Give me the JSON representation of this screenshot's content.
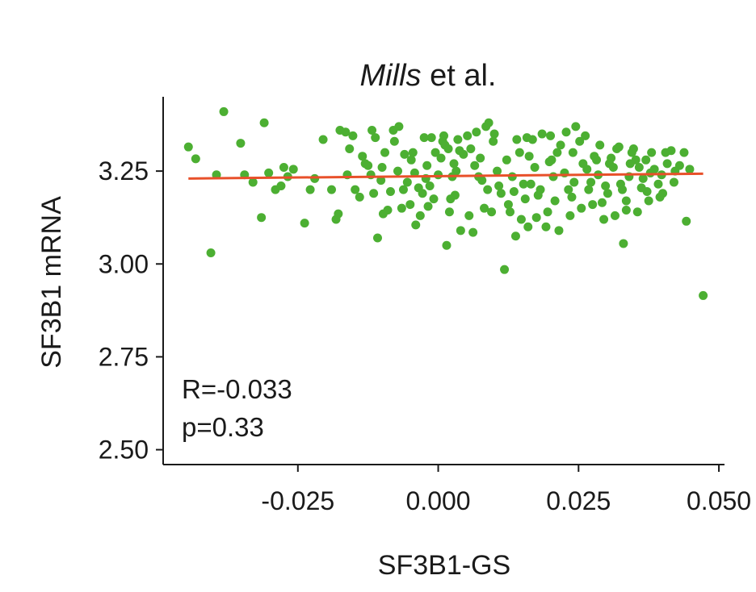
{
  "chart_data": {
    "type": "scatter",
    "title_italic": "Mills",
    "title_rest": " et al.",
    "xlabel": "SF3B1-GS",
    "ylabel": "SF3B1 mRNA",
    "xlim": [
      -0.049,
      0.051
    ],
    "ylim": [
      2.46,
      3.45
    ],
    "xticks": [
      -0.025,
      0.0,
      0.025,
      0.05
    ],
    "xtick_labels": [
      "-0.025",
      "0.000",
      "0.025",
      "0.050"
    ],
    "yticks": [
      2.5,
      2.75,
      3.0,
      3.25
    ],
    "ytick_labels": [
      "2.50",
      "2.75",
      "3.00",
      "3.25"
    ],
    "annotation_r": "R=-0.033",
    "annotation_p": "p=0.33",
    "point_color": "#4caf32",
    "line_color": "#e8502a",
    "fit_line": {
      "x": [
        -0.0445,
        0.0472
      ],
      "y": [
        3.23,
        3.243
      ]
    },
    "points": [
      [
        -0.0445,
        3.315
      ],
      [
        -0.0432,
        3.283
      ],
      [
        -0.0405,
        3.03
      ],
      [
        -0.0395,
        3.24
      ],
      [
        -0.0382,
        3.41
      ],
      [
        -0.0352,
        3.325
      ],
      [
        -0.0345,
        3.24
      ],
      [
        -0.033,
        3.22
      ],
      [
        -0.0315,
        3.125
      ],
      [
        -0.031,
        3.38
      ],
      [
        -0.0302,
        3.245
      ],
      [
        -0.029,
        3.2
      ],
      [
        -0.028,
        3.21
      ],
      [
        -0.0275,
        3.26
      ],
      [
        -0.0268,
        3.235
      ],
      [
        -0.0258,
        3.255
      ],
      [
        -0.0238,
        3.11
      ],
      [
        -0.0228,
        3.2
      ],
      [
        -0.022,
        3.23
      ],
      [
        -0.0205,
        3.335
      ],
      [
        -0.019,
        3.2
      ],
      [
        -0.0182,
        3.12
      ],
      [
        -0.0178,
        3.135
      ],
      [
        -0.0162,
        3.24
      ],
      [
        -0.0158,
        3.31
      ],
      [
        -0.0148,
        3.2
      ],
      [
        -0.014,
        3.18
      ],
      [
        -0.013,
        3.27
      ],
      [
        -0.0118,
        3.36
      ],
      [
        -0.0112,
        3.34
      ],
      [
        -0.0108,
        3.07
      ],
      [
        -0.0102,
        3.225
      ],
      [
        -0.0095,
        3.3
      ],
      [
        -0.0085,
        3.195
      ],
      [
        -0.0078,
        3.33
      ],
      [
        -0.0072,
        3.25
      ],
      [
        -0.0065,
        3.15
      ],
      [
        -0.0055,
        3.22
      ],
      [
        -0.0048,
        3.28
      ],
      [
        -0.004,
        3.105
      ],
      [
        -0.0035,
        3.205
      ],
      [
        -0.0028,
        3.19
      ],
      [
        -0.002,
        3.265
      ],
      [
        -0.0012,
        3.34
      ],
      [
        -0.0005,
        3.3
      ],
      [
        0.0005,
        3.285
      ],
      [
        0.0015,
        3.05
      ],
      [
        0.0025,
        3.235
      ],
      [
        0.0032,
        3.25
      ],
      [
        -0.0175,
        3.36
      ],
      [
        -0.0165,
        3.355
      ],
      [
        -0.0152,
        3.345
      ],
      [
        -0.0135,
        3.29
      ],
      [
        -0.0125,
        3.265
      ],
      [
        -0.0115,
        3.19
      ],
      [
        -0.0098,
        3.135
      ],
      [
        -0.009,
        3.145
      ],
      [
        -0.008,
        3.36
      ],
      [
        -0.007,
        3.37
      ],
      [
        -0.006,
        3.295
      ],
      [
        -0.005,
        3.16
      ],
      [
        -0.0042,
        3.245
      ],
      [
        -0.0032,
        3.13
      ],
      [
        -0.0022,
        3.23
      ],
      [
        -0.0015,
        3.21
      ],
      [
        -0.0008,
        3.175
      ],
      [
        0.0,
        3.24
      ],
      [
        0.0008,
        3.33
      ],
      [
        0.0012,
        3.32
      ],
      [
        0.0018,
        3.31
      ],
      [
        0.0022,
        3.175
      ],
      [
        0.003,
        3.185
      ],
      [
        0.0038,
        3.305
      ],
      [
        0.0045,
        3.295
      ],
      [
        0.0052,
        3.345
      ],
      [
        0.0058,
        3.31
      ],
      [
        0.0065,
        3.265
      ],
      [
        0.0072,
        3.235
      ],
      [
        0.0078,
        3.225
      ],
      [
        0.0085,
        3.37
      ],
      [
        0.009,
        3.38
      ],
      [
        0.0098,
        3.33
      ],
      [
        0.0105,
        3.25
      ],
      [
        0.0112,
        3.19
      ],
      [
        0.0118,
        2.985
      ],
      [
        0.0125,
        3.16
      ],
      [
        0.0132,
        3.235
      ],
      [
        0.0138,
        3.075
      ],
      [
        0.0145,
        3.3
      ],
      [
        0.0152,
        3.215
      ],
      [
        0.0158,
        3.34
      ],
      [
        0.0165,
        3.215
      ],
      [
        0.0172,
        3.26
      ],
      [
        0.0178,
        3.185
      ],
      [
        0.0185,
        3.35
      ],
      [
        0.0192,
        3.1
      ],
      [
        0.0198,
        3.275
      ],
      [
        0.0205,
        3.235
      ],
      [
        0.0212,
        3.3
      ],
      [
        0.0218,
        3.32
      ],
      [
        0.0225,
        3.245
      ],
      [
        0.0232,
        3.2
      ],
      [
        0.0238,
        3.18
      ],
      [
        0.0245,
        3.37
      ],
      [
        0.0252,
        3.33
      ],
      [
        0.0258,
        3.27
      ],
      [
        0.0265,
        3.255
      ],
      [
        0.0272,
        3.22
      ],
      [
        0.0278,
        3.29
      ],
      [
        0.0285,
        3.24
      ],
      [
        0.0292,
        3.165
      ],
      [
        0.0298,
        3.21
      ],
      [
        0.0305,
        3.27
      ],
      [
        0.0312,
        3.26
      ],
      [
        0.0318,
        3.31
      ],
      [
        0.0325,
        3.215
      ],
      [
        0.033,
        3.055
      ],
      [
        0.0335,
        3.145
      ],
      [
        0.034,
        3.235
      ],
      [
        0.0345,
        3.3
      ],
      [
        0.0352,
        3.28
      ],
      [
        0.0358,
        3.26
      ],
      [
        0.0365,
        3.23
      ],
      [
        0.0372,
        3.195
      ],
      [
        0.0378,
        3.245
      ],
      [
        0.0385,
        3.255
      ],
      [
        0.0392,
        3.215
      ],
      [
        0.04,
        3.19
      ],
      [
        0.0408,
        3.27
      ],
      [
        0.0415,
        3.305
      ],
      [
        0.0422,
        3.25
      ],
      [
        0.043,
        3.265
      ],
      [
        0.0438,
        3.3
      ],
      [
        0.0442,
        3.115
      ],
      [
        0.0448,
        3.255
      ],
      [
        0.0472,
        2.915
      ],
      [
        0.004,
        3.09
      ],
      [
        0.0062,
        3.085
      ],
      [
        0.0082,
        3.15
      ],
      [
        0.0095,
        3.14
      ],
      [
        0.0128,
        3.14
      ],
      [
        0.0148,
        3.12
      ],
      [
        0.016,
        3.1
      ],
      [
        0.0175,
        3.125
      ],
      [
        0.0195,
        3.14
      ],
      [
        0.0215,
        3.09
      ],
      [
        0.0235,
        3.13
      ],
      [
        0.0255,
        3.15
      ],
      [
        0.0275,
        3.16
      ],
      [
        0.0295,
        3.12
      ],
      [
        0.0315,
        3.13
      ],
      [
        0.0335,
        3.17
      ],
      [
        0.0355,
        3.14
      ],
      [
        0.0375,
        3.17
      ],
      [
        0.0395,
        3.18
      ],
      [
        -0.0025,
        3.34
      ],
      [
        0.001,
        3.345
      ],
      [
        0.0035,
        3.335
      ],
      [
        0.0068,
        3.355
      ],
      [
        0.01,
        3.35
      ],
      [
        0.014,
        3.335
      ],
      [
        0.0168,
        3.335
      ],
      [
        0.02,
        3.345
      ],
      [
        0.0228,
        3.355
      ],
      [
        0.0262,
        3.345
      ],
      [
        0.0288,
        3.32
      ],
      [
        0.0322,
        3.315
      ],
      [
        0.0348,
        3.31
      ],
      [
        0.038,
        3.3
      ],
      [
        0.0405,
        3.3
      ],
      [
        -0.0062,
        3.2
      ],
      [
        -0.0018,
        3.155
      ],
      [
        0.002,
        3.14
      ],
      [
        0.0055,
        3.13
      ],
      [
        0.0088,
        3.2
      ],
      [
        0.0108,
        3.21
      ],
      [
        0.0135,
        3.195
      ],
      [
        0.0155,
        3.175
      ],
      [
        0.0182,
        3.2
      ],
      [
        0.0208,
        3.17
      ],
      [
        0.0242,
        3.22
      ],
      [
        0.0268,
        3.2
      ],
      [
        0.0302,
        3.19
      ],
      [
        0.0328,
        3.2
      ],
      [
        0.0362,
        3.205
      ],
      [
        -0.012,
        3.24
      ],
      [
        -0.01,
        3.26
      ],
      [
        -0.0045,
        3.3
      ],
      [
        0.0028,
        3.27
      ],
      [
        0.0075,
        3.285
      ],
      [
        0.0122,
        3.28
      ],
      [
        0.0162,
        3.29
      ],
      [
        0.0202,
        3.28
      ],
      [
        0.024,
        3.3
      ],
      [
        0.0282,
        3.28
      ],
      [
        0.0308,
        3.285
      ],
      [
        0.0342,
        3.27
      ],
      [
        0.037,
        3.28
      ],
      [
        0.0398,
        3.24
      ],
      [
        0.042,
        3.22
      ]
    ]
  }
}
